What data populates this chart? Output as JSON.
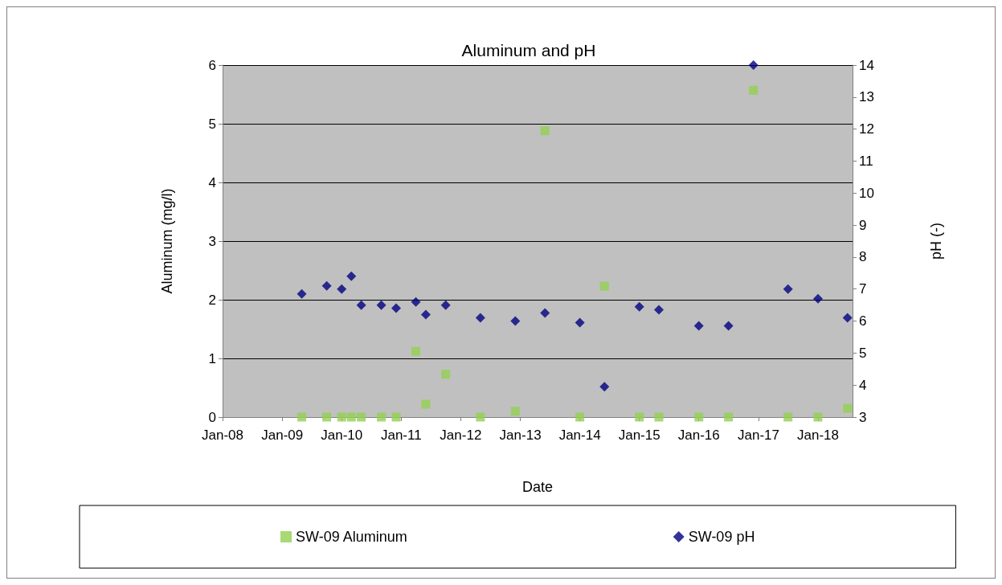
{
  "chart_data": {
    "type": "scatter",
    "title": "Aluminum and pH",
    "xlabel": "Date",
    "ylabel": "Aluminum (mg/l)",
    "y2label": "pH (-)",
    "xlim": [
      "2008-01",
      "2018-08"
    ],
    "xticks": [
      {
        "value": "2008-01",
        "label": "Jan-08"
      },
      {
        "value": "2009-01",
        "label": "Jan-09"
      },
      {
        "value": "2010-01",
        "label": "Jan-10"
      },
      {
        "value": "2011-01",
        "label": "Jan-11"
      },
      {
        "value": "2012-01",
        "label": "Jan-12"
      },
      {
        "value": "2013-01",
        "label": "Jan-13"
      },
      {
        "value": "2014-01",
        "label": "Jan-14"
      },
      {
        "value": "2015-01",
        "label": "Jan-15"
      },
      {
        "value": "2016-01",
        "label": "Jan-16"
      },
      {
        "value": "2017-01",
        "label": "Jan-17"
      },
      {
        "value": "2018-01",
        "label": "Jan-18"
      }
    ],
    "ylim": [
      0,
      6
    ],
    "yticks": [
      0,
      1,
      2,
      3,
      4,
      5,
      6
    ],
    "y2lim": [
      3,
      14
    ],
    "y2ticks": [
      3,
      4,
      5,
      6,
      7,
      8,
      9,
      10,
      11,
      12,
      13,
      14
    ],
    "grid": "y",
    "legend": "bottom",
    "series": [
      {
        "name": "SW-09 Aluminum",
        "color": "#92d050",
        "marker": "square",
        "x": [
          "2009-05",
          "2009-10",
          "2010-01",
          "2010-03",
          "2010-05",
          "2010-09",
          "2010-12",
          "2011-04",
          "2011-06",
          "2011-10",
          "2012-05",
          "2012-12",
          "2013-06",
          "2014-01",
          "2014-06",
          "2015-01",
          "2015-05",
          "2016-01",
          "2016-07",
          "2016-12",
          "2017-07",
          "2018-01",
          "2018-07"
        ],
        "values": [
          0,
          0,
          0,
          0,
          0,
          0,
          0,
          1.12,
          0.22,
          0.73,
          0,
          0.1,
          4.88,
          0,
          2.23,
          0,
          0,
          0,
          0,
          5.57,
          0,
          0,
          0.15
        ]
      },
      {
        "name": "SW-09 pH",
        "color": "#000080",
        "marker": "diamond",
        "axis": "y2",
        "x": [
          "2009-05",
          "2009-10",
          "2010-01",
          "2010-03",
          "2010-05",
          "2010-09",
          "2010-12",
          "2011-04",
          "2011-06",
          "2011-10",
          "2012-05",
          "2012-12",
          "2013-06",
          "2014-01",
          "2014-06",
          "2015-01",
          "2015-05",
          "2016-01",
          "2016-07",
          "2016-12",
          "2017-07",
          "2018-01",
          "2018-07"
        ],
        "values": [
          6.85,
          7.1,
          7.0,
          7.4,
          6.5,
          6.5,
          6.4,
          6.6,
          6.2,
          6.5,
          6.1,
          6.0,
          6.25,
          5.95,
          3.95,
          6.45,
          6.35,
          5.85,
          5.85,
          14,
          7.0,
          6.7,
          6.1
        ]
      }
    ]
  }
}
